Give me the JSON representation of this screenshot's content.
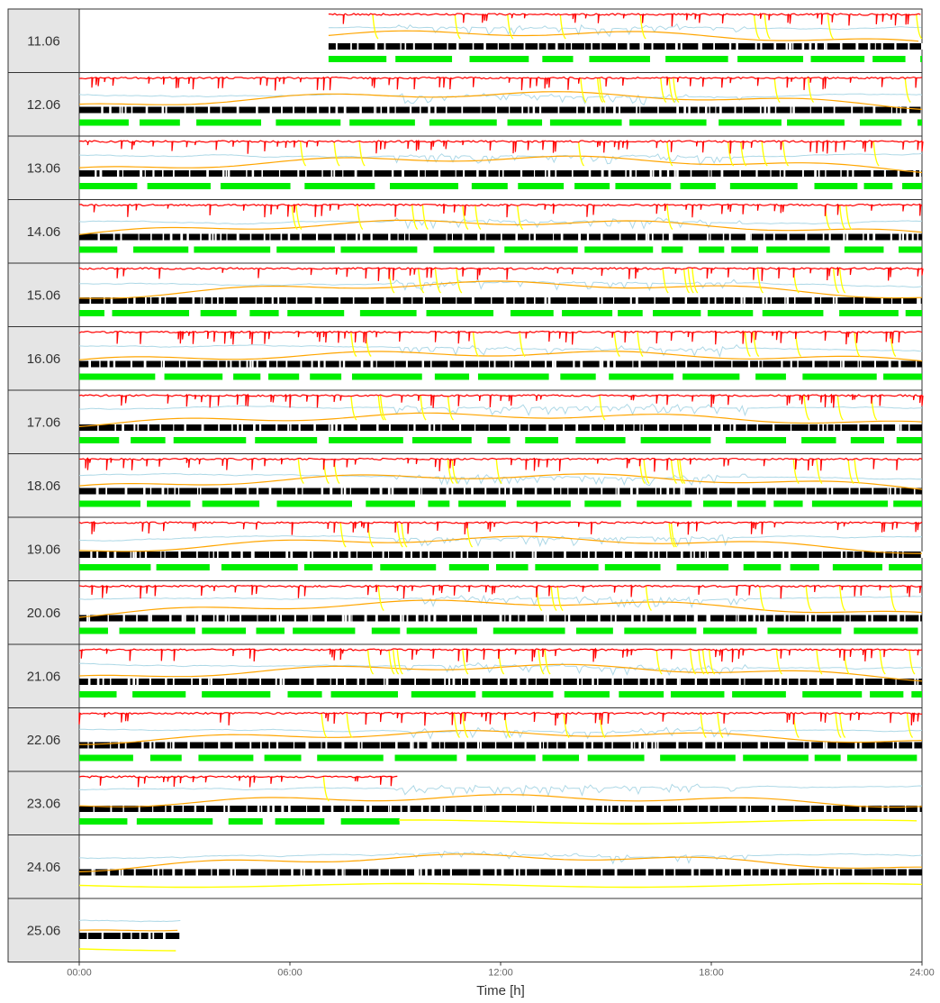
{
  "chart_data": {
    "type": "line",
    "title": "",
    "xlabel": "Time [h]",
    "ylabel": "",
    "xlim": [
      0,
      24
    ],
    "x_ticks": [
      "00:00",
      "06:00",
      "12:00",
      "18:00",
      "24:00"
    ],
    "facets": [
      {
        "label": "11.06",
        "start_h": 7.1,
        "end_h": 24.0
      },
      {
        "label": "12.06",
        "start_h": 0.0,
        "end_h": 24.0
      },
      {
        "label": "13.06",
        "start_h": 0.0,
        "end_h": 24.0
      },
      {
        "label": "14.06",
        "start_h": 0.0,
        "end_h": 24.0
      },
      {
        "label": "15.06",
        "start_h": 0.0,
        "end_h": 24.0
      },
      {
        "label": "16.06",
        "start_h": 0.0,
        "end_h": 24.0
      },
      {
        "label": "17.06",
        "start_h": 0.0,
        "end_h": 24.0
      },
      {
        "label": "18.06",
        "start_h": 0.0,
        "end_h": 24.0
      },
      {
        "label": "19.06",
        "start_h": 0.0,
        "end_h": 24.0
      },
      {
        "label": "20.06",
        "start_h": 0.0,
        "end_h": 24.0
      },
      {
        "label": "21.06",
        "start_h": 0.0,
        "end_h": 24.0
      },
      {
        "label": "22.06",
        "start_h": 0.0,
        "end_h": 24.0
      },
      {
        "label": "23.06",
        "start_h": 0.0,
        "end_h": 24.0,
        "red_end_h": 9.1,
        "green_end_h": 9.5
      },
      {
        "label": "24.06",
        "start_h": 0.0,
        "end_h": 24.0,
        "red_end_h": 0.0,
        "green_end_h": 0.0
      },
      {
        "label": "25.06",
        "start_h": 0.0,
        "end_h": 2.9,
        "red_end_h": 0.0,
        "green_end_h": 0.0
      }
    ],
    "series": [
      {
        "color": "#ff0000"
      },
      {
        "color": "#add8e6"
      },
      {
        "color": "#ffa500"
      },
      {
        "color": "#ffff00"
      },
      {
        "color": "#000000"
      },
      {
        "color": "#00ee00"
      }
    ],
    "grid": false,
    "legend": "none"
  },
  "colors": {
    "strip_background": "#e5e5e5",
    "panel_border": "#333333",
    "panel_background": "#ffffff"
  }
}
